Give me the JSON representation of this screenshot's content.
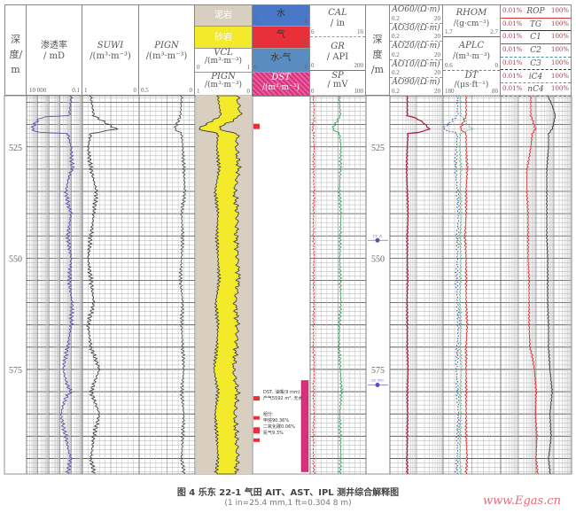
{
  "chart_data": {
    "type": "line",
    "title": "",
    "depth_axis": {
      "label": "深度/m",
      "range": [
        513.5,
        598.5
      ],
      "ticks": [
        525,
        550,
        575
      ],
      "markers": [
        "LY_A",
        "LY_DU"
      ]
    },
    "depth": [
      514,
      518,
      521,
      522,
      525,
      530,
      535,
      540,
      545,
      550,
      555,
      560,
      565,
      570,
      575,
      580,
      585,
      590,
      595,
      598
    ],
    "tracks": [
      {
        "name": "渗透率",
        "unit": "/ mD",
        "scale": [
          "10 000",
          "0.1"
        ],
        "log": true,
        "min": 0.1,
        "max": 10000,
        "reversed": true,
        "color": "#5a4fb0",
        "values": [
          1,
          1.5,
          3000,
          2,
          1,
          0.8,
          3,
          1,
          2,
          1,
          1.5,
          0.8,
          1,
          2,
          5,
          1,
          8,
          3,
          1,
          2
        ]
      },
      {
        "name": "SUWI",
        "unit": "/(m³·m⁻³)",
        "scale": [
          "1",
          "0"
        ],
        "min": 0,
        "max": 1,
        "reversed": true,
        "color": "#444",
        "values": [
          0.85,
          0.8,
          0.4,
          0.85,
          0.9,
          0.85,
          0.75,
          0.8,
          0.85,
          0.9,
          0.85,
          0.8,
          0.9,
          0.85,
          0.7,
          0.85,
          0.7,
          0.8,
          0.85,
          0.8
        ]
      },
      {
        "name": "PIGN",
        "unit": "/(m³·m⁻³)",
        "scale": [
          "0.5",
          "0"
        ],
        "min": 0,
        "max": 0.5,
        "reversed": true,
        "color": "#555",
        "values": [
          0.12,
          0.13,
          0.18,
          0.12,
          0.11,
          0.1,
          0.09,
          0.12,
          0.11,
          0.12,
          0.13,
          0.11,
          0.12,
          0.11,
          0.1,
          0.12,
          0.1,
          0.11,
          0.12,
          0.1
        ]
      },
      {
        "name": "VCL",
        "unit": "/(m³·m⁻³)",
        "scale": [
          "0",
          "1"
        ],
        "min": 0,
        "max": 1,
        "color": "#333",
        "values": [
          0.4,
          0.45,
          0.05,
          0.4,
          0.38,
          0.42,
          0.35,
          0.4,
          0.38,
          0.4,
          0.42,
          0.36,
          0.4,
          0.38,
          0.33,
          0.4,
          0.35,
          0.38,
          0.4,
          0.37
        ]
      },
      {
        "name": "CAL",
        "unit": "/ in",
        "scale": [
          "6",
          "16"
        ],
        "min": 6,
        "max": 16,
        "color": "#e03030",
        "values": [
          6.6,
          6.7,
          6.5,
          6.6,
          6.7,
          6.6,
          6.7,
          6.6,
          6.6,
          6.7,
          6.6,
          6.7,
          6.6,
          6.6,
          6.7,
          6.6,
          6.7,
          6.6,
          6.6,
          6.7
        ]
      },
      {
        "name": "GR",
        "unit": "/ API",
        "scale": [
          "0",
          "200"
        ],
        "min": 0,
        "max": 200,
        "color": "#3aa060",
        "values": [
          105,
          108,
          80,
          105,
          110,
          108,
          105,
          110,
          108,
          106,
          108,
          110,
          105,
          104,
          108,
          112,
          106,
          108,
          110,
          107
        ]
      },
      {
        "name": "AO90",
        "unit": "/(Ω·m)",
        "scale": [
          "0.2",
          "20"
        ],
        "log": true,
        "min": 0.2,
        "max": 20,
        "color": "#b02040",
        "values": [
          0.9,
          0.9,
          6,
          0.95,
          0.9,
          0.85,
          0.9,
          0.95,
          0.9,
          0.9,
          0.92,
          0.88,
          0.9,
          0.9,
          0.95,
          0.9,
          0.92,
          0.9,
          0.88,
          0.9
        ]
      },
      {
        "name": "RHOM",
        "unit": "/(g·cm⁻³)",
        "scale": [
          "1.7",
          "2.7"
        ],
        "min": 1.7,
        "max": 2.7,
        "color": "#e03030",
        "values": [
          2.1,
          2.1,
          2.0,
          2.1,
          2.1,
          2.12,
          2.1,
          2.1,
          2.08,
          2.1,
          2.1,
          2.1,
          2.12,
          2.1,
          2.1,
          2.1,
          2.1,
          2.1,
          2.12,
          2.1
        ]
      },
      {
        "name": "APLC",
        "unit": "/(m³·m⁻³)",
        "scale": [
          "0.6",
          "0"
        ],
        "min": 0,
        "max": 0.6,
        "reversed": true,
        "color": "#4060a0",
        "values": [
          0.45,
          0.45,
          0.6,
          0.45,
          0.46,
          0.47,
          0.45,
          0.44,
          0.45,
          0.45,
          0.46,
          0.45,
          0.44,
          0.45,
          0.46,
          0.45,
          0.44,
          0.45,
          0.45,
          0.46
        ]
      },
      {
        "name": "DT",
        "unit": "/(μs·ft⁻¹)",
        "scale": [
          "180",
          "80"
        ],
        "min": 80,
        "max": 180,
        "reversed": true,
        "color": "#3aa060",
        "values": [
          150,
          149,
          130,
          150,
          151,
          149,
          150,
          148,
          150,
          149,
          150,
          151,
          149,
          150,
          148,
          150,
          149,
          150,
          151,
          149
        ]
      },
      {
        "name": "ROP",
        "scale": [
          "0.01%",
          "100%"
        ],
        "log": true,
        "min": 0.01,
        "max": 100,
        "color": "#e03030",
        "values": [
          0.5,
          0.5,
          0.9,
          0.6,
          0.5,
          0.3,
          0.3,
          0.35,
          0.35,
          0.35,
          0.4,
          0.4,
          0.4,
          0.45,
          0.8,
          1,
          0.9,
          1.1,
          1,
          1.2
        ]
      },
      {
        "name": "TG",
        "scale": [
          "0.01%",
          "100%"
        ],
        "log": true,
        "min": 0.01,
        "max": 100,
        "color": "#333",
        "values": [
          5,
          12,
          8,
          5,
          5,
          4,
          4,
          4,
          4,
          4.5,
          4.5,
          4.5,
          5,
          5,
          6,
          8,
          6,
          7,
          5,
          6
        ]
      }
    ]
  },
  "header": {
    "depth_label": [
      "深",
      "度",
      "/m"
    ],
    "perm": {
      "name": "渗透率",
      "unit": "/ mD",
      "left": "10 000",
      "right": "0.1"
    },
    "suwi": {
      "name": "SUWI",
      "unit": "/(m³·m⁻³)",
      "left": "1",
      "right": "0"
    },
    "pign": {
      "name": "PIGN",
      "unit": "/(m³·m⁻³)",
      "left": "0.5",
      "right": "0"
    },
    "litho": {
      "mudstone": "泥岩",
      "sandstone": "砂岩",
      "vcl": "VCL",
      "vcl_unit": "/(m³·m⁻³)",
      "vcl_left": "0",
      "vcl_right": "1",
      "pign": "PIGN",
      "pign_unit": "/(m³·m⁻³)",
      "pign_left": "1",
      "pign_right": "0"
    },
    "fluid": {
      "water": "水",
      "gas": "气",
      "water_gas": "水-气",
      "dst": "DST",
      "dst_unit": "/(m³·m⁻³)",
      "min": "0",
      "max": "8"
    },
    "cal": {
      "name": "CAL",
      "unit": "/ in",
      "left": "6",
      "right": "16"
    },
    "gr": {
      "name": "GR",
      "unit": "/ API",
      "left": "0",
      "right": "200"
    },
    "sp": {
      "name": "SP",
      "unit": "/ mV",
      "left": "0",
      "right": "100"
    },
    "ao": [
      {
        "name": "AO60/(Ω·m)",
        "left": "0.2",
        "right": "20"
      },
      {
        "name": "AO30/(Ω·m)",
        "left": "0.2",
        "right": "20"
      },
      {
        "name": "AO20/(Ω·m)",
        "left": "0.2",
        "right": "20"
      },
      {
        "name": "AO10/(Ω·m)",
        "left": "0.2",
        "right": "20"
      },
      {
        "name": "AO90/(Ω·m)",
        "left": "0.2",
        "right": "20"
      }
    ],
    "rhom": {
      "name": "RHOM",
      "unit": "/(g·cm⁻³)",
      "left": "1.7",
      "right": "2.7"
    },
    "aplc": {
      "name": "APLC",
      "unit": "/(m³·m⁻³)",
      "left": "0.6",
      "right": "0"
    },
    "dt": {
      "name": "DT",
      "unit": "/(μs·ft⁻¹)",
      "left": "180",
      "right": "80"
    },
    "gas": [
      {
        "name": "ROP",
        "left": "0.01%",
        "right": "100%"
      },
      {
        "name": "TG",
        "left": "0.01%",
        "right": "100%"
      },
      {
        "name": "C1",
        "left": "0.01%",
        "right": "100%"
      },
      {
        "name": "C2",
        "left": "0.01%",
        "right": "100%"
      },
      {
        "name": "C3",
        "left": "0.01%",
        "right": "100%"
      },
      {
        "name": "iC4",
        "left": "0.01%",
        "right": "100%"
      },
      {
        "name": "nC4",
        "left": "0.01%",
        "right": "100%"
      }
    ]
  },
  "annotations": {
    "dst1": "DST, 油嘴(9 mm)",
    "dst2": "产气5592 m³, 无水",
    "comp1": "组分:",
    "comp2": "甲烷90.36%",
    "comp3": "二氧化碳0.06%",
    "comp4": "氮气9.3%"
  },
  "caption": {
    "title": "图 4   乐东 22-1 气田 AIT、AST、IPL 测井综合解释图",
    "note": "(1 in=25.4 mm,1 ft=0.304 8 m)"
  },
  "watermark": "www.Egas.cn",
  "colors": {
    "sand": "#f2ea2a",
    "mud": "#d9cfc0",
    "water": "#4a78c8",
    "gas": "#e8303a",
    "water_gas": "#5a8cc0",
    "dst": "#d8307a"
  }
}
